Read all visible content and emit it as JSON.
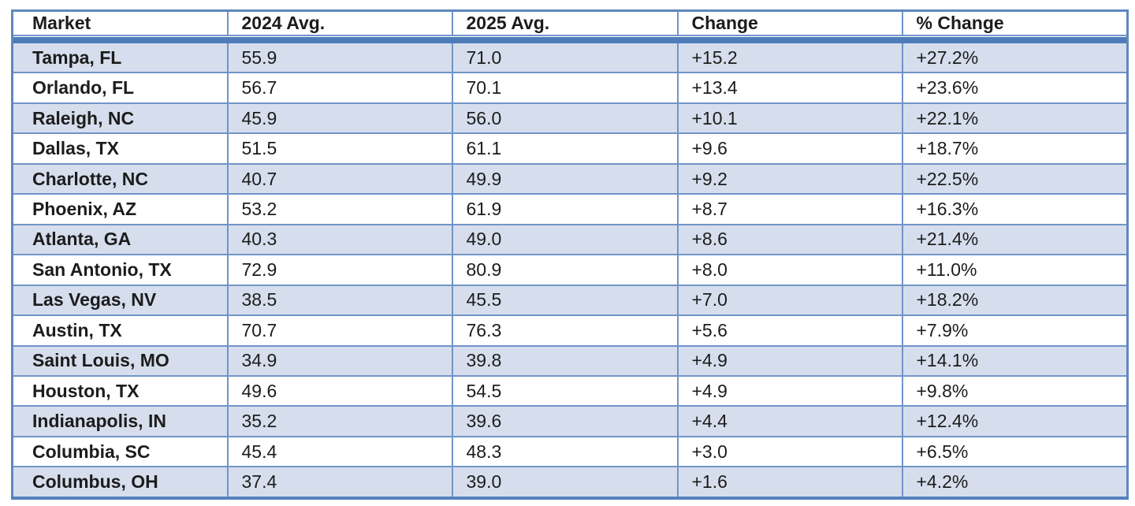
{
  "table": {
    "columns": [
      "Market",
      "2024 Avg.",
      "2025 Avg.",
      "Change",
      "% Change"
    ],
    "rows": [
      {
        "market": "Tampa, FL",
        "avg2024": "55.9",
        "avg2025": "71.0",
        "change": "+15.2",
        "pct_change": "+27.2%"
      },
      {
        "market": "Orlando, FL",
        "avg2024": "56.7",
        "avg2025": "70.1",
        "change": "+13.4",
        "pct_change": "+23.6%"
      },
      {
        "market": "Raleigh, NC",
        "avg2024": "45.9",
        "avg2025": "56.0",
        "change": "+10.1",
        "pct_change": "+22.1%"
      },
      {
        "market": "Dallas, TX",
        "avg2024": "51.5",
        "avg2025": "61.1",
        "change": "+9.6",
        "pct_change": "+18.7%"
      },
      {
        "market": "Charlotte, NC",
        "avg2024": "40.7",
        "avg2025": "49.9",
        "change": "+9.2",
        "pct_change": "+22.5%"
      },
      {
        "market": "Phoenix, AZ",
        "avg2024": "53.2",
        "avg2025": "61.9",
        "change": "+8.7",
        "pct_change": "+16.3%"
      },
      {
        "market": "Atlanta, GA",
        "avg2024": "40.3",
        "avg2025": "49.0",
        "change": "+8.6",
        "pct_change": "+21.4%"
      },
      {
        "market": "San Antonio, TX",
        "avg2024": "72.9",
        "avg2025": "80.9",
        "change": "+8.0",
        "pct_change": "+11.0%"
      },
      {
        "market": "Las Vegas, NV",
        "avg2024": "38.5",
        "avg2025": "45.5",
        "change": "+7.0",
        "pct_change": "+18.2%"
      },
      {
        "market": "Austin, TX",
        "avg2024": "70.7",
        "avg2025": "76.3",
        "change": "+5.6",
        "pct_change": "+7.9%"
      },
      {
        "market": "Saint Louis, MO",
        "avg2024": "34.9",
        "avg2025": "39.8",
        "change": "+4.9",
        "pct_change": "+14.1%"
      },
      {
        "market": "Houston, TX",
        "avg2024": "49.6",
        "avg2025": "54.5",
        "change": "+4.9",
        "pct_change": "+9.8%"
      },
      {
        "market": "Indianapolis, IN",
        "avg2024": "35.2",
        "avg2025": "39.6",
        "change": "+4.4",
        "pct_change": "+12.4%"
      },
      {
        "market": "Columbia, SC",
        "avg2024": "45.4",
        "avg2025": "48.3",
        "change": "+3.0",
        "pct_change": "+6.5%"
      },
      {
        "market": "Columbus, OH",
        "avg2024": "37.4",
        "avg2025": "39.0",
        "change": "+1.6",
        "pct_change": "+4.2%"
      }
    ]
  },
  "chart_data": {
    "type": "table",
    "columns": [
      "Market",
      "2024 Avg.",
      "2025 Avg.",
      "Change",
      "% Change"
    ],
    "categories": [
      "Tampa, FL",
      "Orlando, FL",
      "Raleigh, NC",
      "Dallas, TX",
      "Charlotte, NC",
      "Phoenix, AZ",
      "Atlanta, GA",
      "San Antonio, TX",
      "Las Vegas, NV",
      "Austin, TX",
      "Saint Louis, MO",
      "Houston, TX",
      "Indianapolis, IN",
      "Columbia, SC",
      "Columbus, OH"
    ],
    "series": [
      {
        "name": "2024 Avg.",
        "values": [
          55.9,
          56.7,
          45.9,
          51.5,
          40.7,
          53.2,
          40.3,
          72.9,
          38.5,
          70.7,
          34.9,
          49.6,
          35.2,
          45.4,
          37.4
        ]
      },
      {
        "name": "2025 Avg.",
        "values": [
          71.0,
          70.1,
          56.0,
          61.1,
          49.9,
          61.9,
          49.0,
          80.9,
          45.5,
          76.3,
          39.8,
          54.5,
          39.6,
          48.3,
          39.0
        ]
      },
      {
        "name": "Change",
        "values": [
          15.2,
          13.4,
          10.1,
          9.6,
          9.2,
          8.7,
          8.6,
          8.0,
          7.0,
          5.6,
          4.9,
          4.9,
          4.4,
          3.0,
          1.6
        ]
      },
      {
        "name": "% Change",
        "values": [
          27.2,
          23.6,
          22.1,
          18.7,
          22.5,
          16.3,
          21.4,
          11.0,
          18.2,
          7.9,
          14.1,
          9.8,
          12.4,
          6.5,
          4.2
        ]
      }
    ]
  },
  "colors": {
    "row_alt_fill": "#D6DEED",
    "row_plain_fill": "#FFFFFF",
    "grid_line": "#7094C8",
    "outer_border": "#6088BE",
    "header_band": "#4E7CB8",
    "text": "#1C1C1C"
  }
}
